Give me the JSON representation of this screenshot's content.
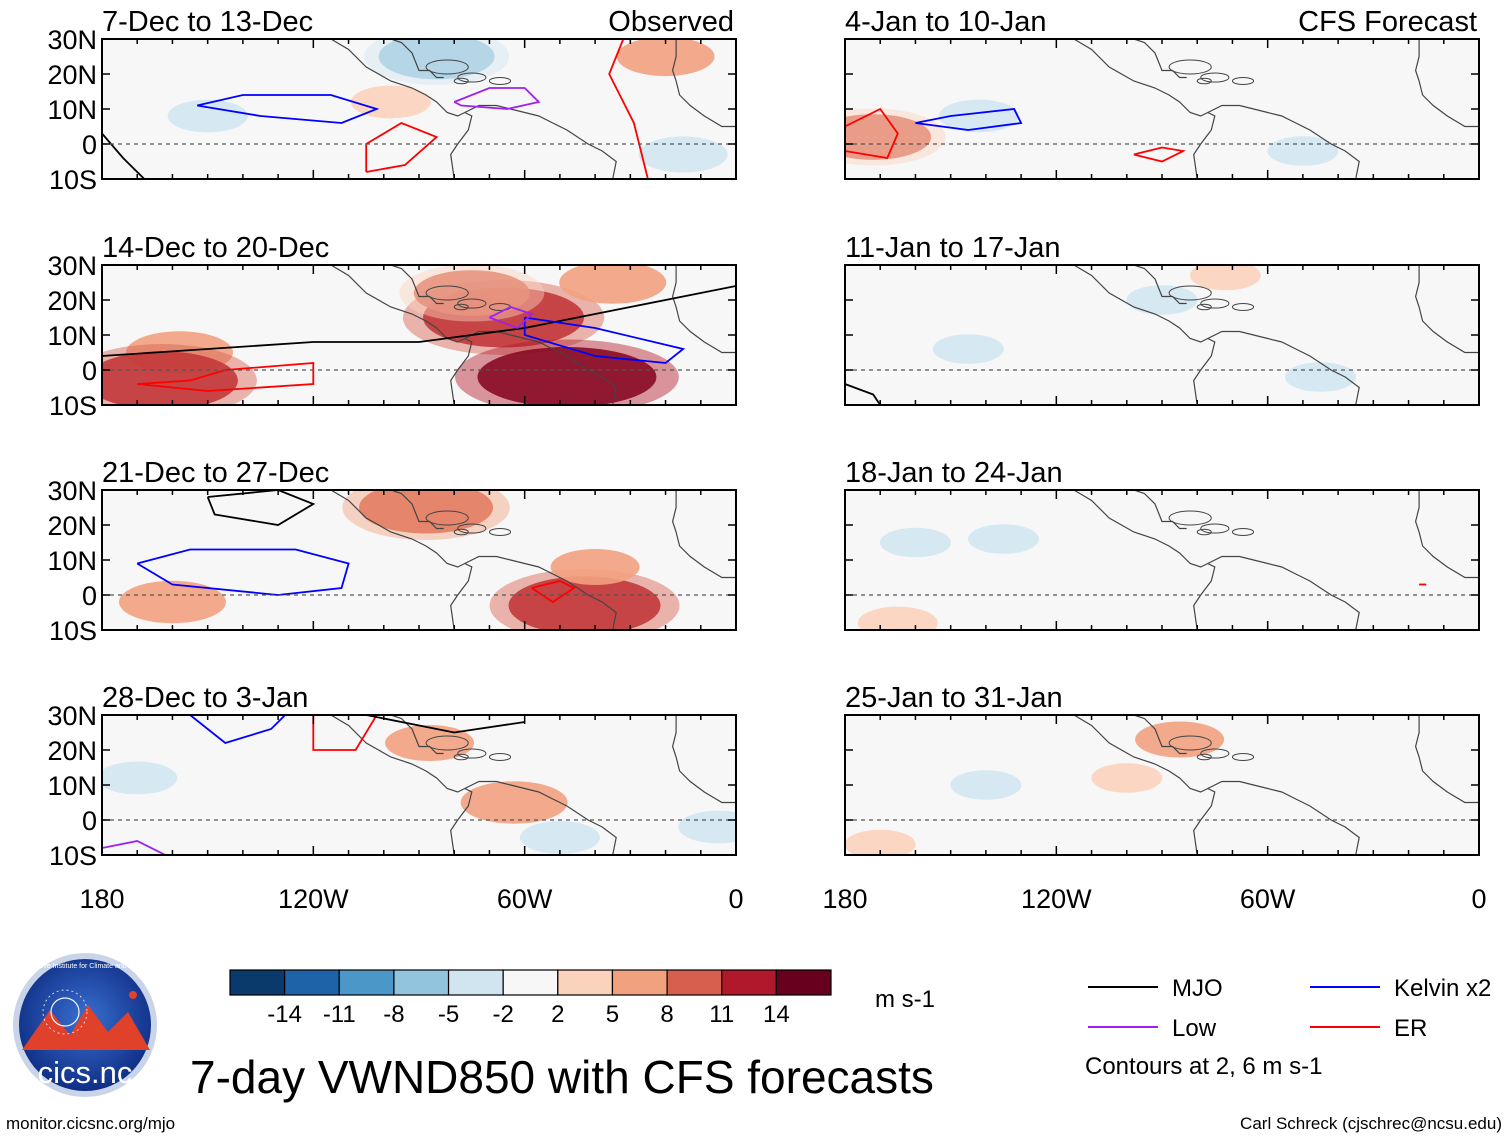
{
  "chart_data": {
    "type": "heatmap",
    "title": "7-day VWND850 with CFS forecasts",
    "variable": "850 hPa meridional wind (VWND850)",
    "units": "m s-1",
    "lon_range": [
      180,
      360
    ],
    "lat_range": [
      -10,
      30
    ],
    "x_ticks": [
      {
        "value": 180,
        "label": "180"
      },
      {
        "value": 240,
        "label": "120W"
      },
      {
        "value": 300,
        "label": "60W"
      },
      {
        "value": 360,
        "label": "0"
      }
    ],
    "y_ticks": [
      {
        "value": 30,
        "label": "30N"
      },
      {
        "value": 20,
        "label": "20N"
      },
      {
        "value": 10,
        "label": "10N"
      },
      {
        "value": 0,
        "label": "0"
      },
      {
        "value": -10,
        "label": "10S"
      }
    ],
    "column_headers": {
      "left": "Observed",
      "right": "CFS Forecast"
    },
    "panels": [
      {
        "column": "left",
        "row": 0,
        "period": "7-Dec to 13-Dec",
        "fills": [
          {
            "lon": 210,
            "lat": 8,
            "v": -4
          },
          {
            "lon": 275,
            "lat": 25,
            "v": -8
          },
          {
            "lon": 340,
            "lat": 25,
            "v": 6
          },
          {
            "lon": 345,
            "lat": -3,
            "v": -5
          },
          {
            "lon": 262,
            "lat": 12,
            "v": 4
          }
        ],
        "contours": [
          {
            "type": "Kelvin",
            "points": [
              [
                207,
                11
              ],
              [
                220,
                14
              ],
              [
                245,
                14
              ],
              [
                258,
                10
              ],
              [
                248,
                6
              ],
              [
                225,
                8
              ],
              [
                207,
                11
              ]
            ]
          },
          {
            "type": "Low",
            "points": [
              [
                280,
                12
              ],
              [
                290,
                16
              ],
              [
                300,
                16
              ],
              [
                304,
                12
              ],
              [
                295,
                10
              ],
              [
                282,
                11
              ],
              [
                280,
                12
              ]
            ]
          },
          {
            "type": "ER",
            "points": [
              [
                255,
                -8
              ],
              [
                266,
                -6
              ],
              [
                275,
                2
              ],
              [
                265,
                6
              ],
              [
                255,
                0
              ],
              [
                255,
                -8
              ]
            ]
          },
          {
            "type": "MJO",
            "points": [
              [
                180,
                3
              ],
              [
                186,
                -4
              ],
              [
                192,
                -10
              ]
            ]
          },
          {
            "type": "ER",
            "points": [
              [
                328,
                30
              ],
              [
                324,
                20
              ],
              [
                331,
                6
              ],
              [
                335,
                -10
              ]
            ]
          }
        ]
      },
      {
        "column": "left",
        "row": 1,
        "period": "14-Dec to 20-Dec",
        "fills": [
          {
            "lon": 202,
            "lat": 5,
            "v": 7
          },
          {
            "lon": 197,
            "lat": -3,
            "v": 12
          },
          {
            "lon": 294,
            "lat": 15,
            "v": 13
          },
          {
            "lon": 312,
            "lat": -2,
            "v": 15
          },
          {
            "lon": 285,
            "lat": 22,
            "v": 8
          },
          {
            "lon": 325,
            "lat": 25,
            "v": 7
          }
        ],
        "contours": [
          {
            "type": "MJO",
            "points": [
              [
                180,
                4
              ],
              [
                210,
                6
              ],
              [
                240,
                8
              ],
              [
                270,
                8
              ],
              [
                300,
                12
              ],
              [
                330,
                18
              ],
              [
                360,
                24
              ]
            ]
          },
          {
            "type": "ER",
            "points": [
              [
                190,
                -4
              ],
              [
                205,
                -3
              ],
              [
                215,
                0
              ],
              [
                240,
                2
              ],
              [
                240,
                -4
              ],
              [
                210,
                -6
              ],
              [
                190,
                -4
              ]
            ]
          },
          {
            "type": "Kelvin",
            "points": [
              [
                300,
                15
              ],
              [
                320,
                12
              ],
              [
                345,
                6
              ],
              [
                340,
                2
              ],
              [
                320,
                4
              ],
              [
                300,
                10
              ],
              [
                300,
                15
              ]
            ]
          },
          {
            "type": "Low",
            "points": [
              [
                290,
                15
              ],
              [
                296,
                18
              ],
              [
                302,
                16
              ],
              [
                298,
                12
              ],
              [
                290,
                15
              ]
            ]
          }
        ]
      },
      {
        "column": "left",
        "row": 2,
        "period": "21-Dec to 27-Dec",
        "fills": [
          {
            "lon": 200,
            "lat": -2,
            "v": 7
          },
          {
            "lon": 272,
            "lat": 25,
            "v": 10
          },
          {
            "lon": 317,
            "lat": -3,
            "v": 12
          },
          {
            "lon": 320,
            "lat": 8,
            "v": 5
          }
        ],
        "contours": [
          {
            "type": "Kelvin",
            "points": [
              [
                190,
                9
              ],
              [
                205,
                13
              ],
              [
                235,
                13
              ],
              [
                250,
                9
              ],
              [
                248,
                2
              ],
              [
                230,
                0
              ],
              [
                200,
                3
              ],
              [
                190,
                9
              ]
            ]
          },
          {
            "type": "MJO",
            "points": [
              [
                210,
                28
              ],
              [
                230,
                30
              ],
              [
                240,
                26
              ],
              [
                230,
                20
              ],
              [
                212,
                23
              ],
              [
                210,
                28
              ]
            ]
          },
          {
            "type": "ER",
            "points": [
              [
                302,
                2
              ],
              [
                308,
                -2
              ],
              [
                314,
                2
              ],
              [
                310,
                4
              ],
              [
                302,
                2
              ]
            ]
          }
        ]
      },
      {
        "column": "left",
        "row": 3,
        "period": "28-Dec to 3-Jan",
        "fills": [
          {
            "lon": 190,
            "lat": 12,
            "v": -4
          },
          {
            "lon": 310,
            "lat": -5,
            "v": -4
          },
          {
            "lon": 355,
            "lat": -2,
            "v": -4
          },
          {
            "lon": 297,
            "lat": 5,
            "v": 7
          },
          {
            "lon": 273,
            "lat": 22,
            "v": 5
          }
        ],
        "contours": [
          {
            "type": "Kelvin",
            "points": [
              [
                205,
                30
              ],
              [
                215,
                22
              ],
              [
                228,
                26
              ],
              [
                232,
                30
              ]
            ]
          },
          {
            "type": "ER",
            "points": [
              [
                240,
                30
              ],
              [
                240,
                20
              ],
              [
                252,
                20
              ],
              [
                258,
                30
              ]
            ]
          },
          {
            "type": "MJO",
            "points": [
              [
                255,
                30
              ],
              [
                280,
                25
              ],
              [
                300,
                28
              ]
            ]
          },
          {
            "type": "Low",
            "points": [
              [
                180,
                -8
              ],
              [
                190,
                -6
              ],
              [
                198,
                -10
              ]
            ]
          }
        ]
      },
      {
        "column": "right",
        "row": 0,
        "period": "4-Jan to 10-Jan",
        "fills": [
          {
            "lon": 188,
            "lat": 2,
            "v": 8
          },
          {
            "lon": 218,
            "lat": 8,
            "v": -4
          },
          {
            "lon": 310,
            "lat": -2,
            "v": -3
          }
        ],
        "contours": [
          {
            "type": "Kelvin",
            "points": [
              [
                200,
                6
              ],
              [
                210,
                8
              ],
              [
                228,
                10
              ],
              [
                230,
                6
              ],
              [
                215,
                4
              ],
              [
                200,
                6
              ]
            ]
          },
          {
            "type": "ER",
            "points": [
              [
                180,
                5
              ],
              [
                190,
                10
              ],
              [
                195,
                3
              ],
              [
                192,
                -4
              ],
              [
                180,
                -2
              ],
              [
                180,
                5
              ]
            ]
          },
          {
            "type": "ER",
            "points": [
              [
                262,
                -3
              ],
              [
                270,
                -1
              ],
              [
                276,
                -2
              ],
              [
                270,
                -5
              ],
              [
                262,
                -3
              ]
            ]
          }
        ]
      },
      {
        "column": "right",
        "row": 1,
        "period": "11-Jan to 17-Jan",
        "fills": [
          {
            "lon": 215,
            "lat": 6,
            "v": -3
          },
          {
            "lon": 270,
            "lat": 20,
            "v": -3
          },
          {
            "lon": 315,
            "lat": -2,
            "v": -3
          },
          {
            "lon": 288,
            "lat": 27,
            "v": 3
          }
        ],
        "contours": [
          {
            "type": "MJO",
            "points": [
              [
                180,
                -4
              ],
              [
                188,
                -7
              ],
              [
                190,
                -10
              ]
            ]
          }
        ]
      },
      {
        "column": "right",
        "row": 2,
        "period": "18-Jan to 24-Jan",
        "fills": [
          {
            "lon": 200,
            "lat": 15,
            "v": -3
          },
          {
            "lon": 225,
            "lat": 16,
            "v": -3
          },
          {
            "lon": 195,
            "lat": -8,
            "v": 4
          }
        ],
        "contours": [
          {
            "type": "ER",
            "points": [
              [
                343,
                3
              ],
              [
                345,
                3
              ]
            ]
          }
        ]
      },
      {
        "column": "right",
        "row": 3,
        "period": "25-Jan to 31-Jan",
        "fills": [
          {
            "lon": 275,
            "lat": 23,
            "v": 5
          },
          {
            "lon": 260,
            "lat": 12,
            "v": 3
          },
          {
            "lon": 220,
            "lat": 10,
            "v": -3
          },
          {
            "lon": 190,
            "lat": -7,
            "v": 3
          }
        ],
        "contours": []
      }
    ],
    "colorbar": {
      "levels": [
        "-14",
        "-11",
        "-8",
        "-5",
        "-2",
        "2",
        "5",
        "8",
        "11",
        "14"
      ],
      "colors": [
        "#0a3a6b",
        "#1e63a8",
        "#4a97c8",
        "#93c4de",
        "#d1e5f0",
        "#f7f7f7",
        "#fbd3bd",
        "#f2a17f",
        "#d6604d",
        "#b2182b",
        "#67001f"
      ],
      "unit_label": "m s-1"
    },
    "legend": [
      {
        "name": "MJO",
        "color": "#000000"
      },
      {
        "name": "Kelvin x2",
        "color": "#0000ff"
      },
      {
        "name": "Low",
        "color": "#a020f0"
      },
      {
        "name": "ER",
        "color": "#ff0000"
      }
    ],
    "legend_note": "Contours at 2, 6 m s-1"
  },
  "footer": {
    "title": "7-day VWND850 with CFS forecasts",
    "url": "monitor.cicsnc.org/mjo",
    "credit": "Carl Schreck (cjschrec@ncsu.edu)"
  },
  "logo": {
    "text": "cics.nc",
    "ring_text": "Cooperative Institute for Climate and Satellites"
  }
}
